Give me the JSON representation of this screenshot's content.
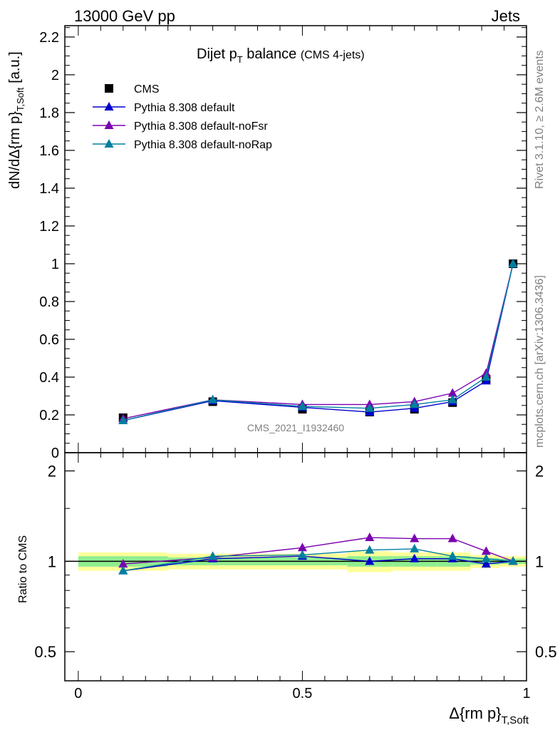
{
  "header": {
    "energy": "13000 GeV pp",
    "category": "Jets"
  },
  "side_labels": {
    "rivet": "Rivet 3.1.10, ≥ 2.6M events",
    "mcplots": "mcplots.cern.ch [arXiv:1306.3436]"
  },
  "watermark": "CMS_2021_I1932460",
  "colors": {
    "cms": "#000000",
    "default": "#0000cc",
    "noFsr": "#7a00b0",
    "noRap": "#0080a0",
    "band_inner": "#90ee90",
    "band_outer": "#ffff99"
  },
  "chart_data": [
    {
      "type": "line",
      "title": "Dijet p_T balance",
      "title_main": "Dijet p",
      "title_sub": "T",
      "title_rest": " balance",
      "title_note": "(CMS 4-jets)",
      "ylabel": "dN/dΔ{rm p}_{T,Soft} [a.u.]",
      "ylabel_main": "dN/dΔ{rm p}",
      "ylabel_sub": "T,Soft",
      "ylabel_unit": "[a.u.]",
      "xlim": [
        -0.03,
        1.0
      ],
      "ylim": [
        0,
        2.26
      ],
      "yticks": [
        "0",
        "0.2",
        "0.4",
        "0.6",
        "0.8",
        "1",
        "1.2",
        "1.4",
        "1.6",
        "1.8",
        "2",
        "2.2"
      ],
      "legend_position": "top-left",
      "series": [
        {
          "name": "CMS",
          "color_key": "cms",
          "marker": "square",
          "x": [
            0.1,
            0.3,
            0.5,
            0.65,
            0.75,
            0.835,
            0.91,
            0.97
          ],
          "y": [
            0.185,
            0.27,
            0.23,
            0.215,
            0.23,
            0.265,
            0.39,
            1.0
          ]
        },
        {
          "name": "Pythia 8.308 default",
          "color_key": "default",
          "marker": "triangle",
          "x": [
            0.1,
            0.3,
            0.5,
            0.65,
            0.75,
            0.835,
            0.91,
            0.97
          ],
          "y": [
            0.17,
            0.275,
            0.24,
            0.215,
            0.235,
            0.27,
            0.38,
            1.0
          ]
        },
        {
          "name": "Pythia 8.308 default-noFsr",
          "color_key": "noFsr",
          "marker": "triangle",
          "x": [
            0.1,
            0.3,
            0.5,
            0.65,
            0.75,
            0.835,
            0.91,
            0.97
          ],
          "y": [
            0.18,
            0.28,
            0.255,
            0.255,
            0.27,
            0.315,
            0.42,
            1.0
          ]
        },
        {
          "name": "Pythia 8.308 default-noRap",
          "color_key": "noRap",
          "marker": "triangle",
          "x": [
            0.1,
            0.3,
            0.5,
            0.65,
            0.75,
            0.835,
            0.91,
            0.97
          ],
          "y": [
            0.17,
            0.28,
            0.245,
            0.235,
            0.255,
            0.28,
            0.4,
            1.0
          ]
        }
      ]
    },
    {
      "type": "line",
      "ylabel": "Ratio to CMS",
      "xlabel": "Δ{rm p}_{T,Soft}",
      "xlabel_main": "Δ{rm p}",
      "xlabel_sub": "T,Soft",
      "xlim": [
        -0.03,
        1.0
      ],
      "ylim": [
        0.4,
        2.3
      ],
      "yscale": "log",
      "yticks": [
        "0.5",
        "1",
        "2"
      ],
      "xticks": [
        "0",
        "0.5",
        "1"
      ],
      "reference_line": 1,
      "bands": [
        {
          "x": [
            0.0,
            0.2
          ],
          "outer": [
            0.93,
            1.07
          ],
          "inner": [
            0.96,
            1.04
          ]
        },
        {
          "x": [
            0.2,
            0.4
          ],
          "outer": [
            0.94,
            1.06
          ],
          "inner": [
            0.97,
            1.03
          ]
        },
        {
          "x": [
            0.4,
            0.6
          ],
          "outer": [
            0.94,
            1.06
          ],
          "inner": [
            0.97,
            1.03
          ]
        },
        {
          "x": [
            0.6,
            0.7
          ],
          "outer": [
            0.92,
            1.08
          ],
          "inner": [
            0.96,
            1.04
          ]
        },
        {
          "x": [
            0.7,
            0.8
          ],
          "outer": [
            0.93,
            1.07
          ],
          "inner": [
            0.96,
            1.04
          ]
        },
        {
          "x": [
            0.8,
            0.875
          ],
          "outer": [
            0.93,
            1.07
          ],
          "inner": [
            0.96,
            1.04
          ]
        },
        {
          "x": [
            0.875,
            0.94
          ],
          "outer": [
            0.95,
            1.05
          ],
          "inner": [
            0.975,
            1.025
          ]
        },
        {
          "x": [
            0.94,
            1.0
          ],
          "outer": [
            0.96,
            1.04
          ],
          "inner": [
            0.98,
            1.02
          ]
        }
      ],
      "series": [
        {
          "name": "Pythia 8.308 default",
          "color_key": "default",
          "x": [
            0.1,
            0.3,
            0.5,
            0.65,
            0.75,
            0.835,
            0.91,
            0.97
          ],
          "y": [
            0.93,
            1.02,
            1.04,
            1.0,
            1.02,
            1.02,
            0.98,
            1.0
          ]
        },
        {
          "name": "Pythia 8.308 default-noFsr",
          "color_key": "noFsr",
          "x": [
            0.1,
            0.3,
            0.5,
            0.65,
            0.75,
            0.835,
            0.91,
            0.97
          ],
          "y": [
            0.98,
            1.03,
            1.11,
            1.2,
            1.19,
            1.19,
            1.08,
            1.0
          ]
        },
        {
          "name": "Pythia 8.308 default-noRap",
          "color_key": "noRap",
          "x": [
            0.1,
            0.3,
            0.5,
            0.65,
            0.75,
            0.835,
            0.91,
            0.97
          ],
          "y": [
            0.93,
            1.04,
            1.05,
            1.09,
            1.1,
            1.04,
            1.02,
            1.0
          ]
        }
      ]
    }
  ]
}
